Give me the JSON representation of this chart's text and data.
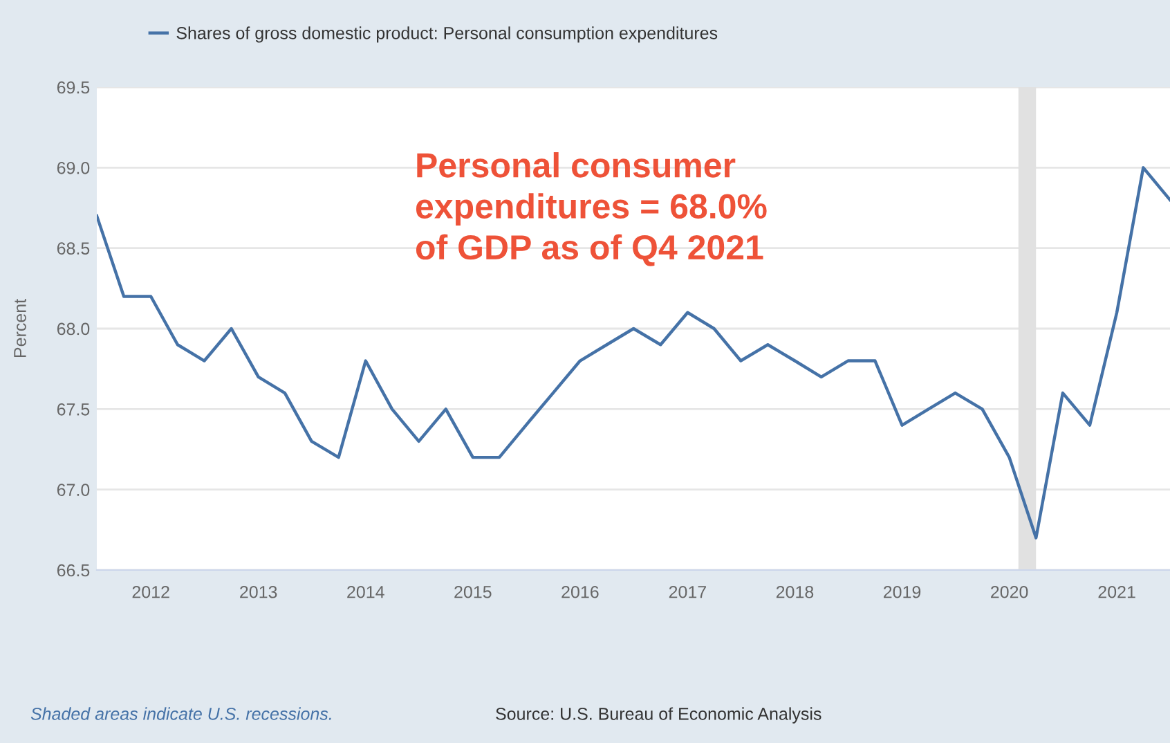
{
  "chart_data": {
    "type": "line",
    "ylabel": "Percent",
    "x": [
      "2011-07-01",
      "2011-10-01",
      "2012-01-01",
      "2012-04-01",
      "2012-07-01",
      "2012-10-01",
      "2013-01-01",
      "2013-04-01",
      "2013-07-01",
      "2013-10-01",
      "2014-01-01",
      "2014-04-01",
      "2014-07-01",
      "2014-10-01",
      "2015-01-01",
      "2015-04-01",
      "2015-07-01",
      "2015-10-01",
      "2016-01-01",
      "2016-04-01",
      "2016-07-01",
      "2016-10-01",
      "2017-01-01",
      "2017-04-01",
      "2017-07-01",
      "2017-10-01",
      "2018-01-01",
      "2018-04-01",
      "2018-07-01",
      "2018-10-01",
      "2019-01-01",
      "2019-04-01",
      "2019-07-01",
      "2019-10-01",
      "2020-01-01",
      "2020-04-01",
      "2020-07-01",
      "2020-10-01",
      "2021-01-01",
      "2021-04-01",
      "2021-07-01"
    ],
    "series": [
      {
        "name": "Shares of gross domestic product: Personal consumption expenditures",
        "color": "#4572a7",
        "values": [
          68.7,
          68.2,
          68.2,
          67.9,
          67.8,
          68.0,
          67.7,
          67.6,
          67.3,
          67.2,
          67.8,
          67.5,
          67.3,
          67.5,
          67.2,
          67.2,
          67.4,
          67.6,
          67.8,
          67.9,
          68.0,
          67.9,
          68.1,
          68.0,
          67.8,
          67.9,
          67.8,
          67.7,
          67.8,
          67.8,
          67.4,
          67.5,
          67.6,
          67.5,
          67.2,
          66.7,
          67.6,
          67.4,
          68.1,
          69.0,
          68.8
        ]
      }
    ],
    "xlim": [
      "2011-07-01",
      "2021-07-01"
    ],
    "xticks": [
      {
        "value": "2012-01-01",
        "label": "2012"
      },
      {
        "value": "2013-01-01",
        "label": "2013"
      },
      {
        "value": "2014-01-01",
        "label": "2014"
      },
      {
        "value": "2015-01-01",
        "label": "2015"
      },
      {
        "value": "2016-01-01",
        "label": "2016"
      },
      {
        "value": "2017-01-01",
        "label": "2017"
      },
      {
        "value": "2018-01-01",
        "label": "2018"
      },
      {
        "value": "2019-01-01",
        "label": "2019"
      },
      {
        "value": "2020-01-01",
        "label": "2020"
      },
      {
        "value": "2021-01-01",
        "label": "2021"
      }
    ],
    "ylim": [
      66.5,
      69.5
    ],
    "yticks": [
      {
        "value": 66.5,
        "label": "66.5"
      },
      {
        "value": 67.0,
        "label": "67.0"
      },
      {
        "value": 67.5,
        "label": "67.5"
      },
      {
        "value": 68.0,
        "label": "68.0"
      },
      {
        "value": 68.5,
        "label": "68.5"
      },
      {
        "value": 69.0,
        "label": "69.0"
      },
      {
        "value": 69.5,
        "label": "69.5"
      }
    ],
    "bands": [
      {
        "axis": "x",
        "from": "2020-02-01",
        "to": "2020-04-01",
        "color": "#e1e1e1"
      }
    ],
    "grid": "y",
    "legend": "top left",
    "annotations": [
      "Personal consumer\nexpenditures = 68.0%\nof GDP as of Q4 2021",
      "Shaded areas indicate U.S. recessions.",
      "Source: U.S. Bureau of Economic Analysis"
    ]
  }
}
